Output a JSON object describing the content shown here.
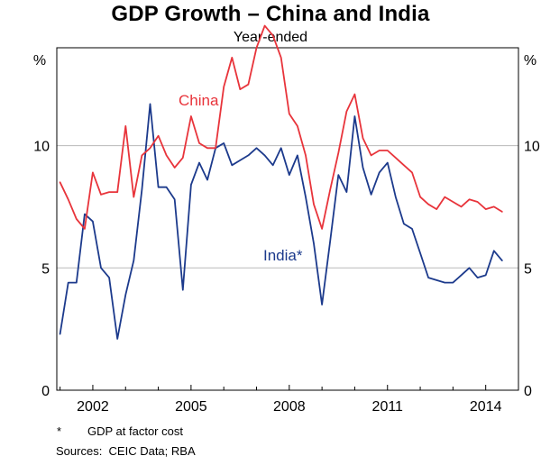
{
  "chart_data": {
    "type": "line",
    "title": "GDP Growth – China and India",
    "subtitle": "Year-ended",
    "left_unit": "%",
    "right_unit": "%",
    "ylim": [
      0,
      14
    ],
    "yticks": [
      0,
      5,
      10
    ],
    "xlim": [
      2000.9,
      2015.0
    ],
    "xticks": [
      2002,
      2005,
      2008,
      2011,
      2014
    ],
    "xtick_labels": [
      "2002",
      "2005",
      "2008",
      "2011",
      "2014"
    ],
    "grid": true,
    "series": [
      {
        "name": "China",
        "label": "China",
        "color": "#e8343b",
        "x": [
          2001.0,
          2001.25,
          2001.5,
          2001.75,
          2002.0,
          2002.25,
          2002.5,
          2002.75,
          2003.0,
          2003.25,
          2003.5,
          2003.75,
          2004.0,
          2004.25,
          2004.5,
          2004.75,
          2005.0,
          2005.25,
          2005.5,
          2005.75,
          2006.0,
          2006.25,
          2006.5,
          2006.75,
          2007.0,
          2007.25,
          2007.5,
          2007.75,
          2008.0,
          2008.25,
          2008.5,
          2008.75,
          2009.0,
          2009.25,
          2009.5,
          2009.75,
          2010.0,
          2010.25,
          2010.5,
          2010.75,
          2011.0,
          2011.25,
          2011.5,
          2011.75,
          2012.0,
          2012.25,
          2012.5,
          2012.75,
          2013.0,
          2013.25,
          2013.5,
          2013.75,
          2014.0,
          2014.25,
          2014.5
        ],
        "values": [
          8.5,
          7.8,
          7.0,
          6.6,
          8.9,
          8.0,
          8.1,
          8.1,
          10.8,
          7.9,
          9.6,
          9.9,
          10.4,
          9.6,
          9.1,
          9.5,
          11.2,
          10.1,
          9.9,
          9.9,
          12.4,
          13.6,
          12.3,
          12.5,
          14.0,
          14.9,
          14.5,
          13.6,
          11.3,
          10.8,
          9.6,
          7.6,
          6.6,
          8.2,
          9.7,
          11.4,
          12.1,
          10.3,
          9.6,
          9.8,
          9.8,
          9.5,
          9.2,
          8.9,
          7.9,
          7.6,
          7.4,
          7.9,
          7.7,
          7.5,
          7.8,
          7.7,
          7.4,
          7.5,
          7.3
        ]
      },
      {
        "name": "India",
        "label": "India*",
        "color": "#1c3a8c",
        "x": [
          2001.0,
          2001.25,
          2001.5,
          2001.75,
          2002.0,
          2002.25,
          2002.5,
          2002.75,
          2003.0,
          2003.25,
          2003.5,
          2003.75,
          2004.0,
          2004.25,
          2004.5,
          2004.75,
          2005.0,
          2005.25,
          2005.5,
          2005.75,
          2006.0,
          2006.25,
          2006.5,
          2006.75,
          2007.0,
          2007.25,
          2007.5,
          2007.75,
          2008.0,
          2008.25,
          2008.5,
          2008.75,
          2009.0,
          2009.25,
          2009.5,
          2009.75,
          2010.0,
          2010.25,
          2010.5,
          2010.75,
          2011.0,
          2011.25,
          2011.5,
          2011.75,
          2012.0,
          2012.25,
          2012.5,
          2012.75,
          2013.0,
          2013.25,
          2013.5,
          2013.75,
          2014.0,
          2014.25,
          2014.5
        ],
        "values": [
          2.3,
          4.4,
          4.4,
          7.2,
          6.9,
          5.0,
          4.6,
          2.1,
          3.9,
          5.3,
          8.2,
          11.7,
          8.3,
          8.3,
          7.8,
          4.1,
          8.4,
          9.3,
          8.6,
          9.9,
          10.1,
          9.2,
          9.4,
          9.6,
          9.9,
          9.6,
          9.2,
          9.9,
          8.8,
          9.6,
          7.9,
          6.0,
          3.5,
          6.1,
          8.8,
          8.1,
          11.2,
          9.1,
          8.0,
          8.9,
          9.3,
          7.9,
          6.8,
          6.6,
          5.6,
          4.6,
          4.5,
          4.4,
          4.4,
          4.7,
          5.0,
          4.6,
          4.7,
          5.7,
          5.3
        ]
      }
    ]
  },
  "notes": {
    "footnote_marker": "*",
    "footnote_text": "GDP at factor cost",
    "sources": "Sources:  CEIC Data; RBA"
  }
}
